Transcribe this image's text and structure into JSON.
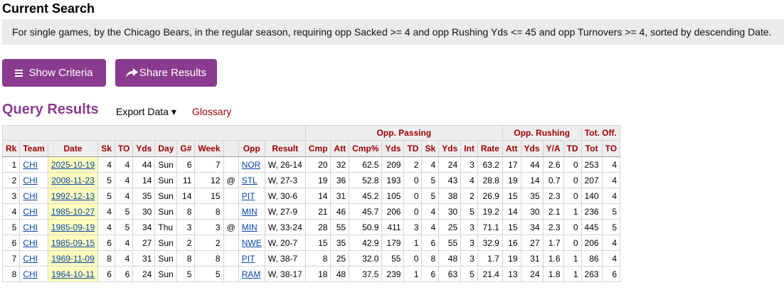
{
  "current_search": {
    "title": "Current Search",
    "description": "For single games, by the Chicago Bears, in the regular season, requiring opp Sacked >= 4 and opp Rushing Yds <= 45 and opp Turnovers >= 4, sorted by descending Date."
  },
  "buttons": {
    "show_criteria": "Show Criteria",
    "share_results": "Share Results"
  },
  "query": {
    "title": "Query Results",
    "export": "Export Data ▾",
    "glossary": "Glossary"
  },
  "colors": {
    "brand_purple": "#8a3b8f",
    "header_red": "#a00000",
    "date_highlight": "#ffffbb",
    "link_blue": "#0645ad"
  },
  "table": {
    "groups": {
      "opp_passing": "Opp. Passing",
      "opp_rushing": "Opp. Rushing",
      "tot_off": "Tot. Off."
    },
    "headers": [
      "Rk",
      "Team",
      "Date",
      "Sk",
      "TO",
      "Yds",
      "Day",
      "G#",
      "Week",
      "",
      "Opp",
      "Result",
      "Cmp",
      "Att",
      "Cmp%",
      "Yds",
      "TD",
      "Sk",
      "Yds",
      "Int",
      "Rate",
      "Att",
      "Yds",
      "Y/A",
      "TD",
      "Tot",
      "TO"
    ],
    "rows": [
      [
        "1",
        "CHI",
        "2025-10-19",
        "4",
        "4",
        "44",
        "Sun",
        "6",
        "7",
        "",
        "NOR",
        "W, 26-14",
        "20",
        "32",
        "62.5",
        "209",
        "2",
        "4",
        "24",
        "3",
        "63.2",
        "17",
        "44",
        "2.6",
        "0",
        "253",
        "4"
      ],
      [
        "2",
        "CHI",
        "2008-11-23",
        "5",
        "4",
        "14",
        "Sun",
        "11",
        "12",
        "@",
        "STL",
        "W, 27-3",
        "19",
        "36",
        "52.8",
        "193",
        "0",
        "5",
        "43",
        "4",
        "28.8",
        "19",
        "14",
        "0.7",
        "0",
        "207",
        "4"
      ],
      [
        "3",
        "CHI",
        "1992-12-13",
        "5",
        "4",
        "35",
        "Sun",
        "14",
        "15",
        "",
        "PIT",
        "W, 30-6",
        "14",
        "31",
        "45.2",
        "105",
        "0",
        "5",
        "38",
        "2",
        "26.9",
        "15",
        "35",
        "2.3",
        "0",
        "140",
        "4"
      ],
      [
        "4",
        "CHI",
        "1985-10-27",
        "4",
        "5",
        "30",
        "Sun",
        "8",
        "8",
        "",
        "MIN",
        "W, 27-9",
        "21",
        "46",
        "45.7",
        "206",
        "0",
        "4",
        "30",
        "5",
        "19.2",
        "14",
        "30",
        "2.1",
        "1",
        "236",
        "5"
      ],
      [
        "5",
        "CHI",
        "1985-09-19",
        "4",
        "5",
        "34",
        "Thu",
        "3",
        "3",
        "@",
        "MIN",
        "W, 33-24",
        "28",
        "55",
        "50.9",
        "411",
        "3",
        "4",
        "25",
        "3",
        "71.1",
        "15",
        "34",
        "2.3",
        "0",
        "445",
        "5"
      ],
      [
        "6",
        "CHI",
        "1985-09-15",
        "6",
        "4",
        "27",
        "Sun",
        "2",
        "2",
        "",
        "NWE",
        "W, 20-7",
        "15",
        "35",
        "42.9",
        "179",
        "1",
        "6",
        "55",
        "3",
        "32.9",
        "16",
        "27",
        "1.7",
        "0",
        "206",
        "4"
      ],
      [
        "7",
        "CHI",
        "1969-11-09",
        "8",
        "4",
        "31",
        "Sun",
        "8",
        "8",
        "",
        "PIT",
        "W, 38-7",
        "8",
        "25",
        "32.0",
        "55",
        "0",
        "8",
        "48",
        "3",
        "1.7",
        "19",
        "31",
        "1.6",
        "1",
        "86",
        "4"
      ],
      [
        "8",
        "CHI",
        "1964-10-11",
        "6",
        "6",
        "24",
        "Sun",
        "5",
        "5",
        "",
        "RAM",
        "W, 38-17",
        "18",
        "48",
        "37.5",
        "239",
        "1",
        "6",
        "63",
        "5",
        "21.4",
        "13",
        "24",
        "1.8",
        "1",
        "263",
        "6"
      ]
    ]
  }
}
